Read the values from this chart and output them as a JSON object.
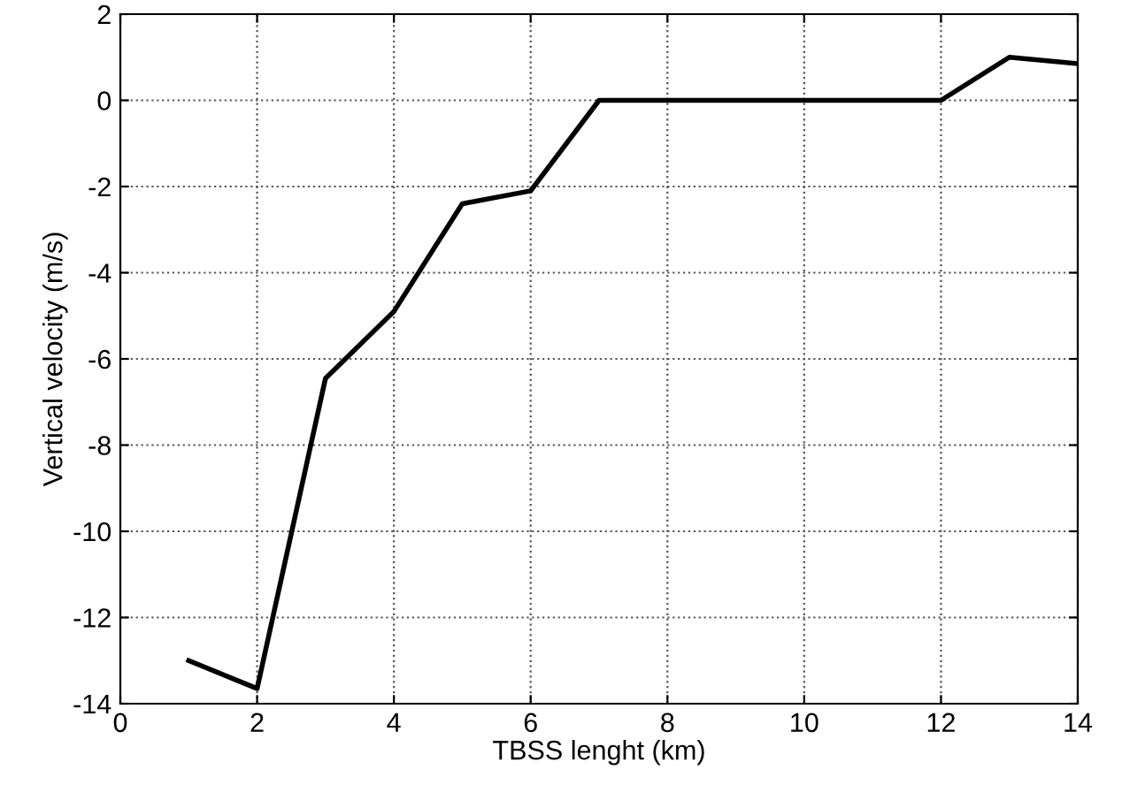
{
  "chart_data": {
    "type": "line",
    "xlabel": "TBSS lenght (km)",
    "ylabel": "Vertical velocity (m/s)",
    "x": [
      1,
      2,
      3,
      4,
      5,
      6,
      7,
      8,
      9,
      10,
      11,
      12,
      13,
      14
    ],
    "series": [
      {
        "color": "#000000",
        "values": [
          -13.0,
          -13.65,
          -6.45,
          -4.9,
          -2.4,
          -2.1,
          0,
          0,
          0,
          0,
          0,
          0,
          1.0,
          0.85
        ]
      }
    ],
    "xlim": [
      0,
      14
    ],
    "xticks": [
      0,
      2,
      4,
      6,
      8,
      10,
      12,
      14
    ],
    "ylim": [
      -14,
      2
    ],
    "yticks": [
      -14,
      -12,
      -10,
      -8,
      -6,
      -4,
      -2,
      0,
      2
    ],
    "grid": true,
    "marker": "none",
    "line_style": "solid"
  }
}
